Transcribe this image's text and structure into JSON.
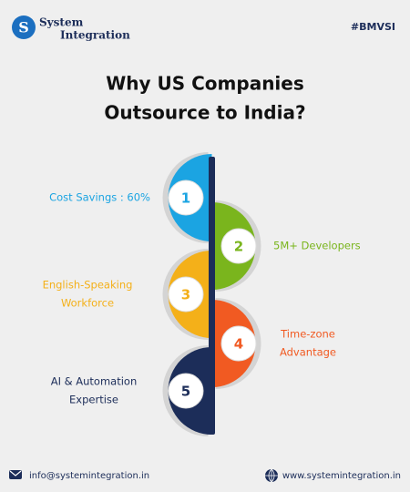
{
  "header": {
    "logo": {
      "line1": "System",
      "line2": "Integration"
    },
    "tag": "#BMVSI"
  },
  "title": {
    "lines": [
      "Why US Companies",
      "Outsource to India?"
    ]
  },
  "items": [
    {
      "number": 1,
      "lines": [
        "Cost Savings : 60%"
      ],
      "color": "#1ba4e2"
    },
    {
      "number": 2,
      "lines": [
        "5M+ Developers"
      ],
      "color": "#7ab51d"
    },
    {
      "number": 3,
      "lines": [
        "English-Speaking",
        "Workforce"
      ],
      "color": "#f4b019"
    },
    {
      "number": 4,
      "lines": [
        "Time-zone",
        "Advantage"
      ],
      "color": "#f15a22"
    },
    {
      "number": 5,
      "lines": [
        "AI & Automation",
        "Expertise"
      ],
      "color": "#1c2d59"
    }
  ],
  "footer": {
    "email": "info@systemintegration.in",
    "website": "www.systemintegration.in"
  }
}
